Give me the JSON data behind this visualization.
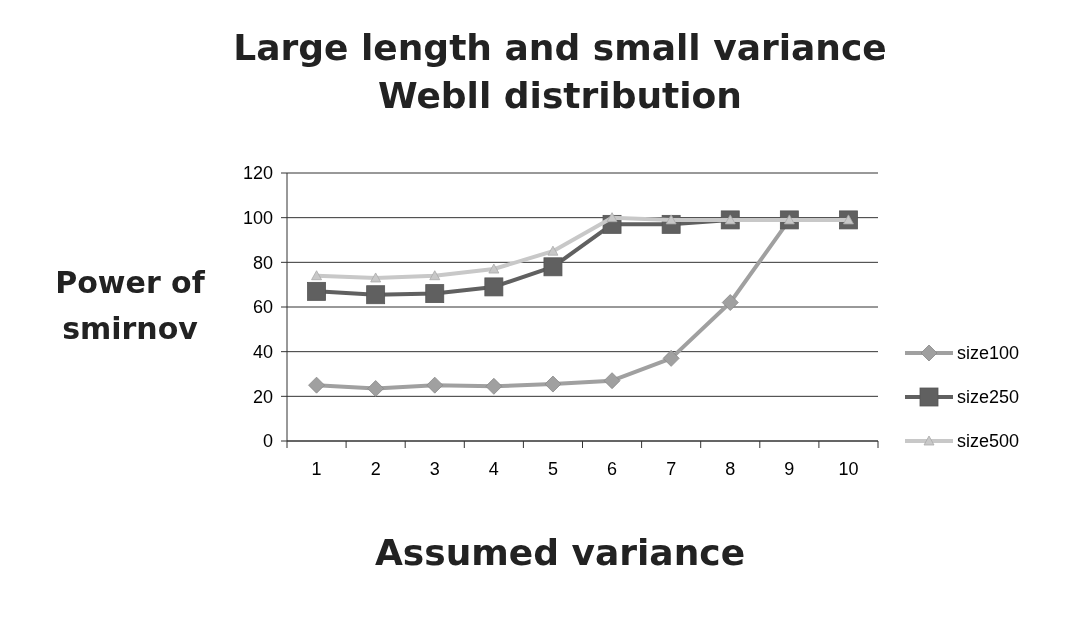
{
  "chart_data": {
    "type": "line",
    "title": "Large  length and small variance\nWebll  distribution",
    "xlabel": "Assumed variance",
    "ylabel": "Power of\nsmirnov",
    "categories": [
      "1",
      "2",
      "3",
      "4",
      "5",
      "6",
      "7",
      "8",
      "9",
      "10"
    ],
    "series": [
      {
        "name": "size100",
        "color": "#a0a0a0",
        "marker": "diamond",
        "values": [
          25,
          23.5,
          25,
          24.5,
          25.5,
          27,
          37,
          62,
          99,
          99
        ]
      },
      {
        "name": "size250",
        "color": "#606060",
        "marker": "square",
        "values": [
          67,
          65.5,
          66,
          69,
          78,
          97,
          97,
          99,
          99,
          99
        ]
      },
      {
        "name": "size500",
        "color": "#c8c8c8",
        "marker": "triangle",
        "values": [
          74,
          73,
          74,
          77,
          85,
          100,
          99,
          99,
          99,
          99
        ]
      }
    ],
    "ylim": [
      0,
      120
    ],
    "yticks": [
      0,
      20,
      40,
      60,
      80,
      100,
      120
    ],
    "grid": "y",
    "legend": "right"
  }
}
